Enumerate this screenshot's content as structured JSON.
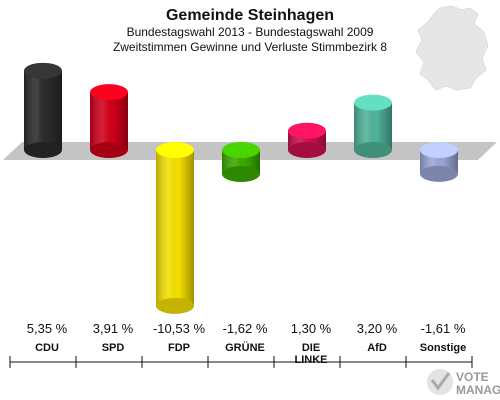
{
  "chart_data": {
    "type": "bar",
    "title": "Gemeinde Steinhagen",
    "subtitle_1": "Bundestagswahl 2013 - Bundestagswahl 2009",
    "subtitle_2": "Zweitstimmen Gewinne und Verluste Stimmbezirk 8",
    "categories": [
      "CDU",
      "SPD",
      "FDP",
      "GRÜNE",
      "DIE LINKE",
      "AfD",
      "Sonstige"
    ],
    "values": [
      5.35,
      3.91,
      -10.53,
      -1.62,
      1.3,
      3.2,
      -1.61
    ],
    "value_labels": [
      "5,35 %",
      "3,91 %",
      "-10,53 %",
      "-1,62 %",
      "1,30 %",
      "3,20 %",
      "-1,61 %"
    ],
    "colors": [
      "#2b2b2b",
      "#d0001a",
      "#f5e000",
      "#3aaa00",
      "#cc1050",
      "#4fb39a",
      "#9aa6d6"
    ],
    "ylim": [
      -11,
      6
    ]
  },
  "logo": {
    "line1": "VOTE",
    "line2": "MANAGER"
  }
}
